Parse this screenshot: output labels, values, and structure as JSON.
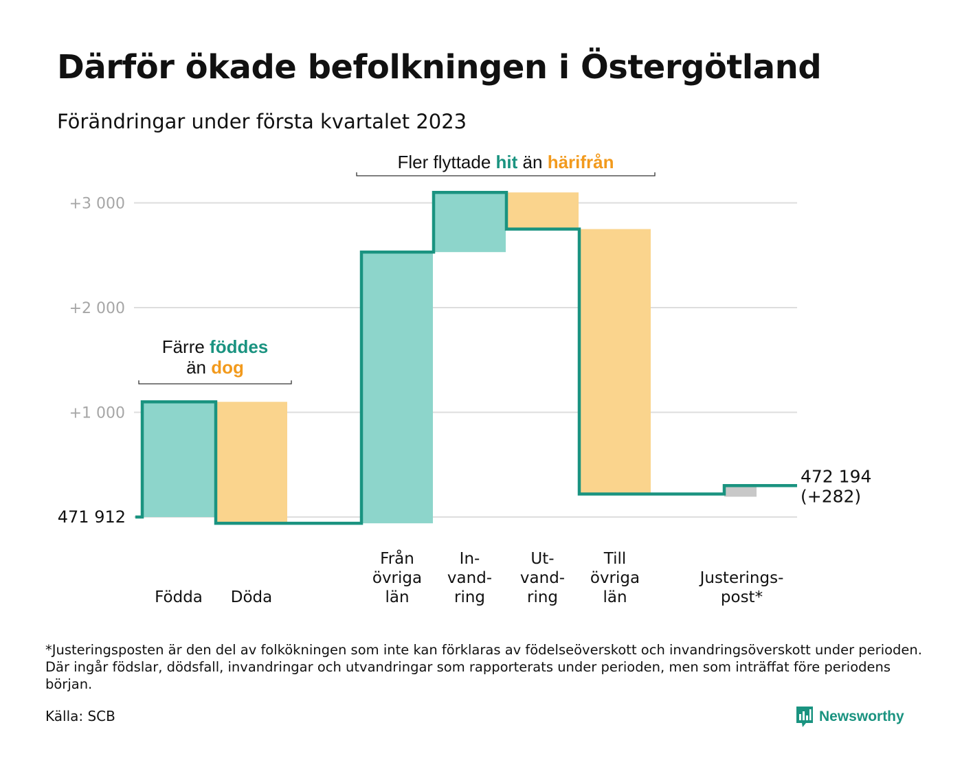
{
  "title": "Därför ökade befolkningen i Östergötland",
  "subtitle": "Förändringar under första kvartalet 2023",
  "footnote": "*Justeringsposten är den del av folkökningen som inte kan förklaras av födelseöverskott och invandringsöverskott under perioden. Där ingår födslar, dödsfall, invandringar och utvandringar som rapporterats under perioden, men som inträffat före periodens början.",
  "source": "Källa: SCB",
  "brand": {
    "name": "Newsworthy",
    "icon": "newsworthy-logo-icon"
  },
  "colors": {
    "increase": "#8dd5cb",
    "decrease": "#fad48d",
    "adjustment": "#c8c8c8",
    "line": "#1a9380",
    "orange_text": "#f29a1d",
    "teal_text": "#1a9380",
    "grid": "#dddddd",
    "tick": "#a6a6a6"
  },
  "chart_data": {
    "type": "waterfall",
    "start": {
      "label": "471 912",
      "value": 471912
    },
    "end": {
      "label_lines": [
        "472 194",
        "(+282)"
      ],
      "value": 472194,
      "change": 282
    },
    "y_ticks": [
      {
        "value": 1000,
        "label": "+1 000"
      },
      {
        "value": 2000,
        "label": "+2 000"
      },
      {
        "value": 3000,
        "label": "+3 000"
      }
    ],
    "grid": true,
    "steps": [
      {
        "label_lines": [
          "Födda"
        ],
        "change": 1100,
        "kind": "increase"
      },
      {
        "label_lines": [
          "Döda"
        ],
        "change": -1160,
        "kind": "decrease"
      },
      {
        "label_lines": [
          "Från",
          "övriga",
          "län"
        ],
        "change": 2590,
        "kind": "increase"
      },
      {
        "label_lines": [
          "In-",
          "vand-",
          "ring"
        ],
        "change": 570,
        "kind": "increase"
      },
      {
        "label_lines": [
          "Ut-",
          "vand-",
          "ring"
        ],
        "change": -350,
        "kind": "decrease"
      },
      {
        "label_lines": [
          "Till",
          "övriga",
          "län"
        ],
        "change": -2530,
        "kind": "decrease"
      },
      {
        "label_lines": [
          "Justerings-",
          "post*"
        ],
        "change": 80,
        "kind": "adjustment"
      }
    ],
    "annotations": [
      {
        "name": "births-vs-deaths",
        "segments": [
          [
            {
              "text": "Färre ",
              "style": "plain"
            },
            {
              "text": "föddes",
              "style": "teal"
            }
          ],
          [
            {
              "text": "än ",
              "style": "plain"
            },
            {
              "text": "dog",
              "style": "orange"
            }
          ]
        ],
        "covers_steps": [
          0,
          1
        ]
      },
      {
        "name": "migration-in-vs-out",
        "segments": [
          [
            {
              "text": "Fler flyttade ",
              "style": "plain"
            },
            {
              "text": "hit",
              "style": "teal"
            },
            {
              "text": " än ",
              "style": "plain"
            },
            {
              "text": "härifrån",
              "style": "orange"
            }
          ]
        ],
        "covers_steps": [
          2,
          3,
          4,
          5
        ]
      }
    ]
  }
}
